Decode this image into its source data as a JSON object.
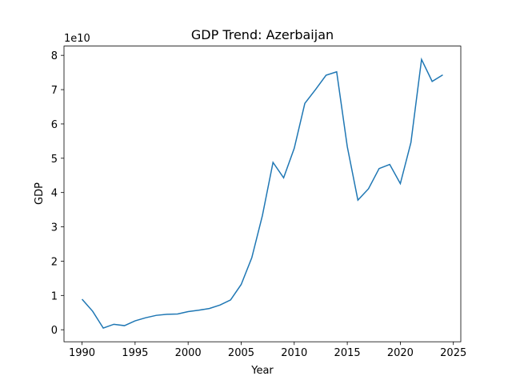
{
  "chart_data": {
    "type": "line",
    "title": "GDP Trend: Azerbaijan",
    "x_label": "Year",
    "y_label": "GDP",
    "y_offset_label": "1e10",
    "x": [
      1990,
      1991,
      1992,
      1993,
      1994,
      1995,
      1996,
      1997,
      1998,
      1999,
      2000,
      2001,
      2002,
      2003,
      2004,
      2005,
      2006,
      2007,
      2008,
      2009,
      2010,
      2011,
      2012,
      2013,
      2014,
      2015,
      2016,
      2017,
      2018,
      2019,
      2020,
      2021,
      2022,
      2023,
      2024
    ],
    "series": [
      {
        "name": "GDP",
        "color": "#1f77b4",
        "values": [
          0.89,
          0.54,
          0.05,
          0.16,
          0.12,
          0.26,
          0.35,
          0.42,
          0.45,
          0.46,
          0.53,
          0.57,
          0.62,
          0.72,
          0.87,
          1.32,
          2.1,
          3.33,
          4.88,
          4.43,
          5.29,
          6.6,
          7.0,
          7.42,
          7.52,
          5.34,
          3.78,
          4.11,
          4.7,
          4.82,
          4.26,
          5.46,
          7.88,
          7.24,
          7.43
        ]
      }
    ],
    "xlim": [
      1988.3,
      2025.7
    ],
    "ylim": [
      -0.35,
      8.27
    ],
    "xticks": [
      1990,
      1995,
      2000,
      2005,
      2010,
      2015,
      2020,
      2025
    ],
    "yticks": [
      0,
      1,
      2,
      3,
      4,
      5,
      6,
      7,
      8
    ]
  }
}
